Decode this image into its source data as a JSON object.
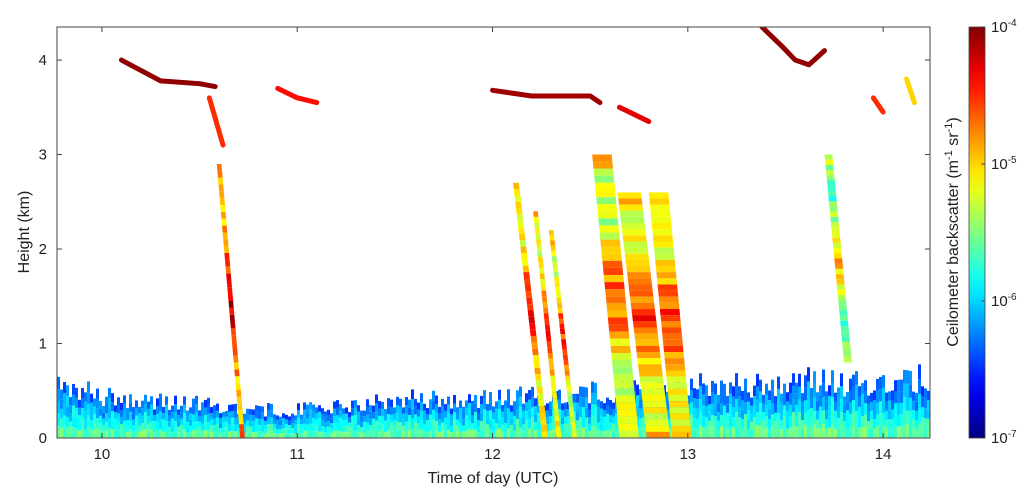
{
  "chart_data": {
    "type": "heatmap",
    "title": "",
    "xlabel": "Time of day (UTC)",
    "ylabel": "Height (km)",
    "xlim": [
      9.77,
      14.24
    ],
    "ylim": [
      0,
      4.35
    ],
    "x_ticks": [
      10,
      11,
      12,
      13,
      14
    ],
    "x_tick_labels": [
      "10",
      "11",
      "12",
      "13",
      "14"
    ],
    "y_ticks": [
      0,
      1,
      2,
      3,
      4
    ],
    "y_tick_labels": [
      "0",
      "1",
      "2",
      "3",
      "4"
    ],
    "grid": false,
    "colorbar": {
      "label_main": "Ceilometer backscatter (m",
      "label_sup1": "-1",
      "label_mid": " sr",
      "label_sup2": "-1",
      "label_end": ")",
      "scale": "log",
      "range": [
        1e-07,
        0.0001
      ],
      "ticks": [
        {
          "value": 0.0001,
          "base": "10",
          "exp": "-4"
        },
        {
          "value": 1e-05,
          "base": "10",
          "exp": "-5"
        },
        {
          "value": 1e-06,
          "base": "10",
          "exp": "-6"
        },
        {
          "value": 1e-07,
          "base": "10",
          "exp": "-7"
        }
      ],
      "colormap": "jet"
    },
    "boundary_layer": {
      "description_values": "aerosol layer top height (km) vs time",
      "x": [
        9.8,
        10.0,
        10.3,
        10.6,
        10.8,
        11.0,
        11.3,
        11.6,
        11.9,
        12.2,
        12.5,
        12.8,
        13.0,
        13.3,
        13.6,
        13.9,
        14.24
      ],
      "top_km": [
        0.55,
        0.45,
        0.38,
        0.35,
        0.3,
        0.3,
        0.35,
        0.42,
        0.4,
        0.45,
        0.48,
        0.5,
        0.55,
        0.55,
        0.6,
        0.58,
        0.65
      ],
      "log_backscatter_surface": -5.6,
      "log_backscatter_top": -6.5
    },
    "fall_streaks": [
      {
        "x_top": 10.6,
        "y_top": 2.9,
        "x_bottom": 10.72,
        "y_bottom": 0.0,
        "log_backscatter": -4.6,
        "width_h": 0.012
      },
      {
        "x_top": 12.12,
        "y_top": 2.7,
        "x_bottom": 12.27,
        "y_bottom": 0.0,
        "log_backscatter": -4.8,
        "width_h": 0.015
      },
      {
        "x_top": 12.22,
        "y_top": 2.4,
        "x_bottom": 12.34,
        "y_bottom": 0.0,
        "log_backscatter": -4.9,
        "width_h": 0.012
      },
      {
        "x_top": 12.3,
        "y_top": 2.2,
        "x_bottom": 12.42,
        "y_bottom": 0.0,
        "log_backscatter": -4.9,
        "width_h": 0.012
      },
      {
        "x_top": 12.56,
        "y_top": 3.0,
        "x_bottom": 12.7,
        "y_bottom": 0.0,
        "log_backscatter": -5.0,
        "width_h": 0.05
      },
      {
        "x_top": 12.7,
        "y_top": 2.6,
        "x_bottom": 12.85,
        "y_bottom": 0.0,
        "log_backscatter": -4.9,
        "width_h": 0.06
      },
      {
        "x_top": 12.85,
        "y_top": 2.6,
        "x_bottom": 12.97,
        "y_bottom": 0.0,
        "log_backscatter": -4.9,
        "width_h": 0.05
      },
      {
        "x_top": 13.72,
        "y_top": 3.0,
        "x_bottom": 13.82,
        "y_bottom": 0.8,
        "log_backscatter": -5.3,
        "width_h": 0.02
      }
    ],
    "cloud_segments": [
      {
        "x": [
          10.1,
          10.3,
          10.5,
          10.58
        ],
        "y": [
          4.0,
          3.78,
          3.75,
          3.72
        ],
        "log_backscatter": -4.05
      },
      {
        "x": [
          10.55,
          10.62
        ],
        "y": [
          3.6,
          3.1
        ],
        "log_backscatter": -4.5
      },
      {
        "x": [
          10.9,
          11.0,
          11.1
        ],
        "y": [
          3.7,
          3.6,
          3.55
        ],
        "log_backscatter": -4.4
      },
      {
        "x": [
          12.0,
          12.2,
          12.5,
          12.55
        ],
        "y": [
          3.68,
          3.62,
          3.62,
          3.55
        ],
        "log_backscatter": -4.1
      },
      {
        "x": [
          13.38,
          13.48,
          13.55,
          13.62,
          13.7
        ],
        "y": [
          4.35,
          4.15,
          4.0,
          3.95,
          4.1
        ],
        "log_backscatter": -4.05
      },
      {
        "x": [
          12.65,
          12.8
        ],
        "y": [
          3.5,
          3.35
        ],
        "log_backscatter": -4.3
      },
      {
        "x": [
          13.95,
          14.0
        ],
        "y": [
          3.6,
          3.45
        ],
        "log_backscatter": -4.5
      },
      {
        "x": [
          14.12,
          14.16
        ],
        "y": [
          3.8,
          3.55
        ],
        "log_backscatter": -5.0
      }
    ]
  }
}
